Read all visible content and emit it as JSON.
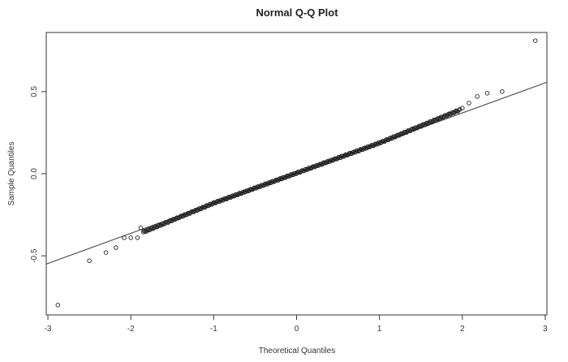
{
  "chart_data": {
    "type": "scatter",
    "title": "Normal Q-Q Plot",
    "xlabel": "Theoretical Quantiles",
    "ylabel": "Sample Quantiles",
    "xlim": [
      -3.02,
      3.02
    ],
    "ylim": [
      -0.86,
      0.86
    ],
    "x_ticks": [
      -3,
      -2,
      -1,
      0,
      1,
      2,
      3
    ],
    "x_tick_labels": [
      "-3",
      "-2",
      "-1",
      "0",
      "1",
      "2",
      "3"
    ],
    "y_ticks": [
      -0.5,
      0.0,
      0.5
    ],
    "y_tick_labels": [
      "-0.5",
      "0.0",
      "0.5"
    ],
    "grid": false,
    "reference_line": {
      "x": [
        -3.02,
        3.02
      ],
      "y": [
        -0.55,
        0.557
      ]
    },
    "outliers": [
      {
        "x": -2.88,
        "y": -0.8
      },
      {
        "x": -2.5,
        "y": -0.53
      },
      {
        "x": -2.3,
        "y": -0.48
      },
      {
        "x": -2.18,
        "y": -0.45
      },
      {
        "x": -2.08,
        "y": -0.39
      },
      {
        "x": -2.0,
        "y": -0.39
      },
      {
        "x": -1.92,
        "y": -0.39
      },
      {
        "x": -1.88,
        "y": -0.33
      },
      {
        "x": 2.0,
        "y": 0.4
      },
      {
        "x": 2.08,
        "y": 0.43
      },
      {
        "x": 2.18,
        "y": 0.47
      },
      {
        "x": 2.3,
        "y": 0.49
      },
      {
        "x": 2.48,
        "y": 0.5
      },
      {
        "x": 2.88,
        "y": 0.81
      }
    ],
    "body": {
      "n": 320,
      "x_range": [
        -1.85,
        1.97
      ],
      "slope": 0.183,
      "intercept": 0.004,
      "tail_shift": 0.025
    }
  }
}
